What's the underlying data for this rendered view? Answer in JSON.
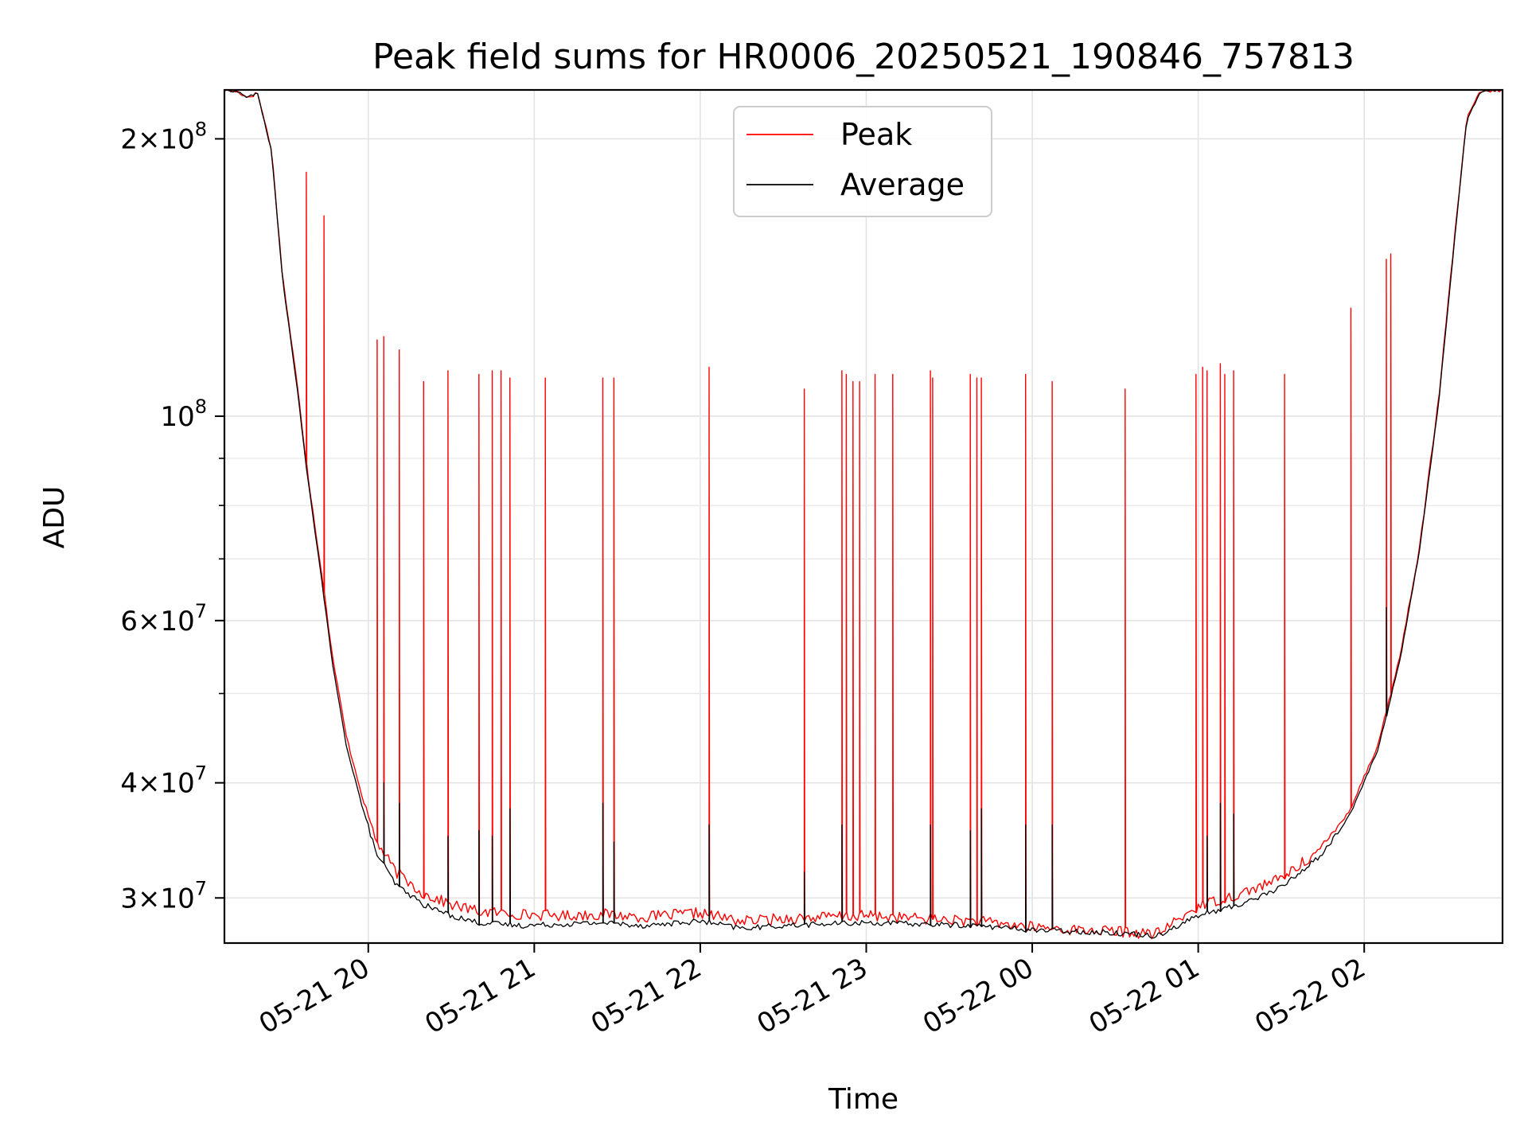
{
  "chart_data": {
    "type": "line",
    "title": "Peak field sums for HR0006_20250521_190846_757813",
    "xlabel": "Time",
    "ylabel": "ADU",
    "yscale": "log",
    "xlim": [
      "2025-05-21 19:08",
      "2025-05-22 02:50"
    ],
    "ylim": [
      26800000,
      226000000
    ],
    "grid": true,
    "legend_position": "top-center",
    "x_ticks": [
      {
        "value": "2025-05-21 20:00",
        "label": "05-21 20"
      },
      {
        "value": "2025-05-21 21:00",
        "label": "05-21 21"
      },
      {
        "value": "2025-05-21 22:00",
        "label": "05-21 22"
      },
      {
        "value": "2025-05-21 23:00",
        "label": "05-21 23"
      },
      {
        "value": "2025-05-22 00:00",
        "label": "05-22 00"
      },
      {
        "value": "2025-05-22 01:00",
        "label": "05-22 01"
      },
      {
        "value": "2025-05-22 02:00",
        "label": "05-22 02"
      }
    ],
    "y_ticks": [
      {
        "value": 200000000,
        "label_mantissa": "2",
        "label_exponent": "8"
      },
      {
        "value": 100000000,
        "label_mantissa": "",
        "label_exponent": "8"
      },
      {
        "value": 60000000,
        "label_mantissa": "6",
        "label_exponent": "7"
      },
      {
        "value": 40000000,
        "label_mantissa": "4",
        "label_exponent": "7"
      },
      {
        "value": 30000000,
        "label_mantissa": "3",
        "label_exponent": "7"
      }
    ],
    "y_minor_ticks": [
      90000000,
      80000000,
      70000000,
      50000000
    ],
    "series": [
      {
        "name": "Peak",
        "color": "#ff0000",
        "x": [
          "2025-05-21 19:08",
          "2025-05-21 19:13",
          "2025-05-21 19:16",
          "2025-05-21 19:20",
          "2025-05-21 19:25",
          "2025-05-21 19:29",
          "2025-05-21 19:34",
          "2025-05-21 19:38",
          "2025-05-21 19:43",
          "2025-05-21 19:47",
          "2025-05-21 19:52",
          "2025-05-21 19:58",
          "2025-05-21 20:03",
          "2025-05-21 20:10",
          "2025-05-21 20:20",
          "2025-05-21 20:30",
          "2025-05-21 20:40",
          "2025-05-21 20:55",
          "2025-05-21 21:10",
          "2025-05-21 21:25",
          "2025-05-21 21:40",
          "2025-05-21 22:00",
          "2025-05-21 22:15",
          "2025-05-21 22:30",
          "2025-05-21 22:45",
          "2025-05-21 23:00",
          "2025-05-21 23:20",
          "2025-05-21 23:40",
          "2025-05-22 00:00",
          "2025-05-22 00:15",
          "2025-05-22 00:30",
          "2025-05-22 00:45",
          "2025-05-22 01:00",
          "2025-05-22 01:15",
          "2025-05-22 01:30",
          "2025-05-22 01:45",
          "2025-05-22 01:55",
          "2025-05-22 02:05",
          "2025-05-22 02:13",
          "2025-05-22 02:20",
          "2025-05-22 02:27",
          "2025-05-22 02:33",
          "2025-05-22 02:37",
          "2025-05-22 02:42",
          "2025-05-22 02:50"
        ],
        "values": [
          226000000,
          225000000,
          222000000,
          224000000,
          195000000,
          142000000,
          110000000,
          87000000,
          68000000,
          55000000,
          45000000,
          38500000,
          34500000,
          32000000,
          30300000,
          29500000,
          29000000,
          28800000,
          28700000,
          28800000,
          28600000,
          28900000,
          28300000,
          28500000,
          28600000,
          28700000,
          28500000,
          28300000,
          27900000,
          27700000,
          27600000,
          27400000,
          29400000,
          30300000,
          31500000,
          34000000,
          37500000,
          44000000,
          55000000,
          72000000,
          105000000,
          160000000,
          210000000,
          225000000,
          226000000
        ],
        "spikes": [
          {
            "x": "2025-05-21 19:38",
            "value": 184000000
          },
          {
            "x": "2025-05-21 19:44",
            "value": 165000000
          },
          {
            "x": "2025-05-21 20:03",
            "value": 121000000
          },
          {
            "x": "2025-05-21 20:06",
            "value": 122000000
          },
          {
            "x": "2025-05-21 20:11",
            "value": 118000000
          },
          {
            "x": "2025-05-21 20:20",
            "value": 109000000
          },
          {
            "x": "2025-05-21 20:29",
            "value": 112000000
          },
          {
            "x": "2025-05-21 20:40",
            "value": 111000000
          },
          {
            "x": "2025-05-21 20:45",
            "value": 112000000
          },
          {
            "x": "2025-05-21 20:48",
            "value": 112000000
          },
          {
            "x": "2025-05-21 20:51",
            "value": 110000000
          },
          {
            "x": "2025-05-21 21:04",
            "value": 110000000
          },
          {
            "x": "2025-05-21 21:25",
            "value": 110000000
          },
          {
            "x": "2025-05-21 21:29",
            "value": 110000000
          },
          {
            "x": "2025-05-21 22:03",
            "value": 113000000
          },
          {
            "x": "2025-05-21 22:38",
            "value": 107000000
          },
          {
            "x": "2025-05-21 22:51",
            "value": 112000000
          },
          {
            "x": "2025-05-21 22:53",
            "value": 111000000
          },
          {
            "x": "2025-05-21 22:55",
            "value": 109000000
          },
          {
            "x": "2025-05-21 22:58",
            "value": 109000000
          },
          {
            "x": "2025-05-21 23:03",
            "value": 111000000
          },
          {
            "x": "2025-05-21 23:10",
            "value": 111000000
          },
          {
            "x": "2025-05-21 23:23",
            "value": 112000000
          },
          {
            "x": "2025-05-21 23:24",
            "value": 110000000
          },
          {
            "x": "2025-05-21 23:38",
            "value": 111000000
          },
          {
            "x": "2025-05-21 23:40",
            "value": 110000000
          },
          {
            "x": "2025-05-21 23:42",
            "value": 110000000
          },
          {
            "x": "2025-05-21 23:58",
            "value": 111000000
          },
          {
            "x": "2025-05-22 00:07",
            "value": 109000000
          },
          {
            "x": "2025-05-22 00:34",
            "value": 107000000
          },
          {
            "x": "2025-05-22 00:59",
            "value": 111000000
          },
          {
            "x": "2025-05-22 01:02",
            "value": 113000000
          },
          {
            "x": "2025-05-22 01:03",
            "value": 112000000
          },
          {
            "x": "2025-05-22 01:08",
            "value": 114000000
          },
          {
            "x": "2025-05-22 01:10",
            "value": 111000000
          },
          {
            "x": "2025-05-22 01:13",
            "value": 112000000
          },
          {
            "x": "2025-05-22 01:31",
            "value": 111000000
          },
          {
            "x": "2025-05-22 01:55",
            "value": 131000000
          },
          {
            "x": "2025-05-22 02:08",
            "value": 148000000
          },
          {
            "x": "2025-05-22 02:10",
            "value": 150000000
          }
        ]
      },
      {
        "name": "Average",
        "color": "#000000",
        "x": [
          "2025-05-21 19:08",
          "2025-05-21 19:13",
          "2025-05-21 19:16",
          "2025-05-21 19:20",
          "2025-05-21 19:25",
          "2025-05-21 19:29",
          "2025-05-21 19:34",
          "2025-05-21 19:38",
          "2025-05-21 19:43",
          "2025-05-21 19:47",
          "2025-05-21 19:52",
          "2025-05-21 19:58",
          "2025-05-21 20:03",
          "2025-05-21 20:10",
          "2025-05-21 20:20",
          "2025-05-21 20:30",
          "2025-05-21 20:40",
          "2025-05-21 20:55",
          "2025-05-21 21:10",
          "2025-05-21 21:25",
          "2025-05-21 21:40",
          "2025-05-21 22:00",
          "2025-05-21 22:15",
          "2025-05-21 22:30",
          "2025-05-21 22:45",
          "2025-05-21 23:00",
          "2025-05-21 23:20",
          "2025-05-21 23:40",
          "2025-05-22 00:00",
          "2025-05-22 00:15",
          "2025-05-22 00:30",
          "2025-05-22 00:45",
          "2025-05-22 01:00",
          "2025-05-22 01:15",
          "2025-05-22 01:30",
          "2025-05-22 01:45",
          "2025-05-22 01:55",
          "2025-05-22 02:05",
          "2025-05-22 02:13",
          "2025-05-22 02:20",
          "2025-05-22 02:27",
          "2025-05-22 02:33",
          "2025-05-22 02:37",
          "2025-05-22 02:42",
          "2025-05-22 02:50"
        ],
        "values": [
          226000000,
          225000000,
          222000000,
          224000000,
          194000000,
          141000000,
          109000000,
          86000000,
          67000000,
          54000000,
          44000000,
          37500000,
          33500000,
          31000000,
          29500000,
          28700000,
          28200000,
          28000000,
          28100000,
          28200000,
          28000000,
          28300000,
          27800000,
          28000000,
          28100000,
          28200000,
          28100000,
          28000000,
          27700000,
          27600000,
          27500000,
          27300000,
          28700000,
          29500000,
          30800000,
          33500000,
          37000000,
          43500000,
          54500000,
          71500000,
          104000000,
          159000000,
          209000000,
          225000000,
          226000000
        ],
        "spikes": [
          {
            "x": "2025-05-21 20:06",
            "value": 40000000
          },
          {
            "x": "2025-05-21 20:11",
            "value": 38000000
          },
          {
            "x": "2025-05-21 20:29",
            "value": 35000000
          },
          {
            "x": "2025-05-21 20:40",
            "value": 35500000
          },
          {
            "x": "2025-05-21 20:45",
            "value": 35000000
          },
          {
            "x": "2025-05-21 20:51",
            "value": 37500000
          },
          {
            "x": "2025-05-21 21:25",
            "value": 38000000
          },
          {
            "x": "2025-05-21 21:29",
            "value": 34500000
          },
          {
            "x": "2025-05-21 22:03",
            "value": 36000000
          },
          {
            "x": "2025-05-21 22:38",
            "value": 32000000
          },
          {
            "x": "2025-05-21 22:51",
            "value": 36000000
          },
          {
            "x": "2025-05-21 23:23",
            "value": 36000000
          },
          {
            "x": "2025-05-21 23:38",
            "value": 35500000
          },
          {
            "x": "2025-05-21 23:42",
            "value": 37500000
          },
          {
            "x": "2025-05-21 23:58",
            "value": 36000000
          },
          {
            "x": "2025-05-22 00:07",
            "value": 36000000
          },
          {
            "x": "2025-05-22 01:03",
            "value": 35000000
          },
          {
            "x": "2025-05-22 01:08",
            "value": 38000000
          },
          {
            "x": "2025-05-22 01:13",
            "value": 37000000
          },
          {
            "x": "2025-05-22 02:08",
            "value": 62000000
          }
        ]
      }
    ]
  }
}
